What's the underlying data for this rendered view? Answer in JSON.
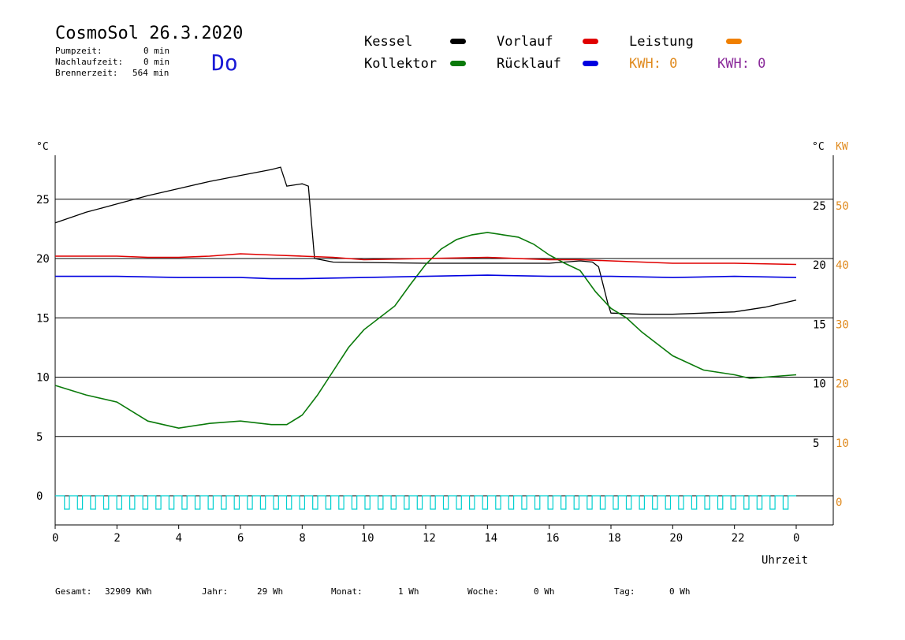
{
  "header": {
    "title": "CosmoSol 26.3.2020",
    "pumpzeit_label": "Pumpzeit:",
    "pumpzeit_value": "0 min",
    "nachlaufzeit_label": "Nachlaufzeit:",
    "nachlaufzeit_value": "0 min",
    "brennerzeit_label": "Brennerzeit:",
    "brennerzeit_value": "564 min",
    "day": "Do"
  },
  "legend": {
    "kessel": "Kessel",
    "kollektor": "Kollektor",
    "vorlauf": "Vorlauf",
    "ruecklauf": "Rücklauf",
    "leistung": "Leistung",
    "kwh1": "KWH: 0",
    "kwh2": "KWH: 0"
  },
  "colors": {
    "kessel": "#000000",
    "kollektor": "#0a7a0a",
    "vorlauf": "#e00000",
    "ruecklauf": "#0000e0",
    "leistung": "#f08000",
    "kwh_orange": "#e08a1e",
    "kwh_purple": "#8a2a9a",
    "pump": "#00d0d0"
  },
  "footer": {
    "gesamt_label": "Gesamt:",
    "gesamt_value": "32909 KWh",
    "jahr_label": "Jahr:",
    "jahr_value": "29 Wh",
    "monat_label": "Monat:",
    "monat_value": "1 Wh",
    "woche_label": "Woche:",
    "woche_value": "0 Wh",
    "tag_label": "Tag:",
    "tag_value": "0 Wh"
  },
  "chart_data": {
    "type": "line",
    "xlabel": "Uhrzeit",
    "ylabel_left": "°C",
    "ylabel_right": "°C",
    "ylabel_right2": "KW",
    "xlim": [
      0,
      24
    ],
    "ylim": [
      -2.5,
      29
    ],
    "x_ticks": [
      "0",
      "2",
      "4",
      "6",
      "8",
      "10",
      "12",
      "14",
      "16",
      "18",
      "20",
      "22",
      "0"
    ],
    "y_ticks_left": [
      "0",
      "5",
      "10",
      "15",
      "20",
      "25"
    ],
    "y_ticks_right": [
      "5",
      "10",
      "15",
      "20",
      "25"
    ],
    "y_ticks_kw": [
      "0",
      "10",
      "20",
      "30",
      "40",
      "50"
    ],
    "grid": true,
    "series": [
      {
        "name": "Kessel",
        "color": "#000000",
        "x": [
          0,
          1,
          2,
          3,
          4,
          5,
          6,
          7,
          7.3,
          7.5,
          8,
          8.2,
          8.4,
          9,
          12,
          16,
          17,
          17.4,
          17.6,
          17.9,
          18,
          19,
          20,
          21,
          22,
          23,
          24
        ],
        "y": [
          23.0,
          23.9,
          24.6,
          25.3,
          25.9,
          26.5,
          27.0,
          27.5,
          27.7,
          26.1,
          26.3,
          26.1,
          20.0,
          19.7,
          19.6,
          19.6,
          19.8,
          19.7,
          19.3,
          16.2,
          15.4,
          15.3,
          15.3,
          15.4,
          15.5,
          15.9,
          16.5
        ]
      },
      {
        "name": "Kollektor",
        "color": "#0a7a0a",
        "x": [
          0,
          1,
          2,
          3,
          4,
          5,
          6,
          7,
          7.5,
          8,
          8.5,
          9,
          9.5,
          10,
          11,
          11.5,
          12,
          12.5,
          13,
          13.5,
          14,
          14.5,
          15,
          15.5,
          16,
          16.5,
          17,
          17.5,
          18,
          18.5,
          19,
          19.5,
          20,
          21,
          22,
          22.5,
          23,
          24
        ],
        "y": [
          9.3,
          8.5,
          7.9,
          6.3,
          5.7,
          6.1,
          6.3,
          6.0,
          6.0,
          6.8,
          8.5,
          10.5,
          12.5,
          14.0,
          16.0,
          17.8,
          19.5,
          20.8,
          21.6,
          22.0,
          22.2,
          22.0,
          21.8,
          21.2,
          20.3,
          19.6,
          19.0,
          17.2,
          15.8,
          15.0,
          13.8,
          12.8,
          11.8,
          10.6,
          10.2,
          9.9,
          10.0,
          10.2
        ]
      },
      {
        "name": "Vorlauf",
        "color": "#e00000",
        "x": [
          0,
          2,
          3,
          4,
          5,
          6,
          7,
          8,
          9,
          10,
          12,
          14,
          16,
          17,
          18,
          19,
          20,
          22,
          24
        ],
        "y": [
          20.2,
          20.2,
          20.1,
          20.1,
          20.2,
          20.4,
          20.3,
          20.2,
          20.1,
          19.9,
          20.0,
          20.1,
          19.9,
          19.9,
          19.8,
          19.7,
          19.6,
          19.6,
          19.5
        ]
      },
      {
        "name": "Rücklauf",
        "color": "#0000e0",
        "x": [
          0,
          2,
          4,
          6,
          7,
          8,
          10,
          12,
          14,
          16,
          18,
          20,
          22,
          24
        ],
        "y": [
          18.5,
          18.5,
          18.4,
          18.4,
          18.3,
          18.3,
          18.4,
          18.5,
          18.6,
          18.5,
          18.5,
          18.4,
          18.5,
          18.4
        ]
      }
    ],
    "pump_signal": {
      "name": "Pumpe",
      "color": "#00d0d0",
      "pulse_count": 56
    }
  }
}
